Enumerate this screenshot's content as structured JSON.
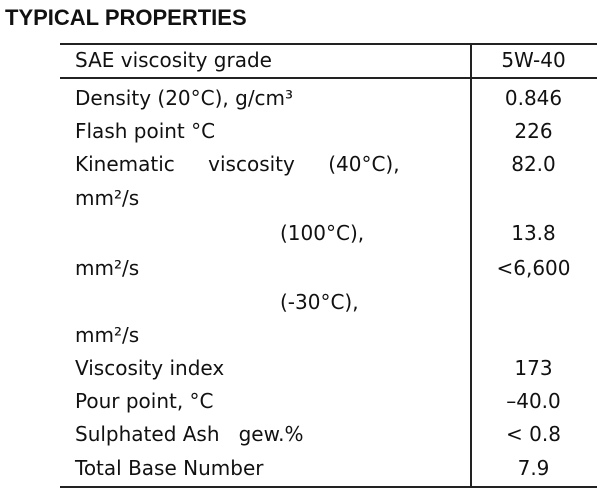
{
  "title": "TYPICAL PROPERTIES",
  "table": {
    "header": [
      "SAE viscosity grade",
      "5W-40"
    ],
    "left_lines": [
      "Density (20°C), g/cm³",
      "Flash point °C",
      "Kinematic viscosity (40°C),",
      "mm²/s",
      "(100°C),",
      "mm²/s",
      "(-30°C),",
      "mm²/s",
      "Viscosity index",
      "Pour point, °C",
      "Sulphated Ash   gew.%",
      "Total Base Number"
    ],
    "right_lines": [
      "0.846",
      "226",
      "82.0",
      "13.8",
      "<6,600",
      "173",
      "–40.0",
      "< 0.8",
      "7.9"
    ]
  }
}
